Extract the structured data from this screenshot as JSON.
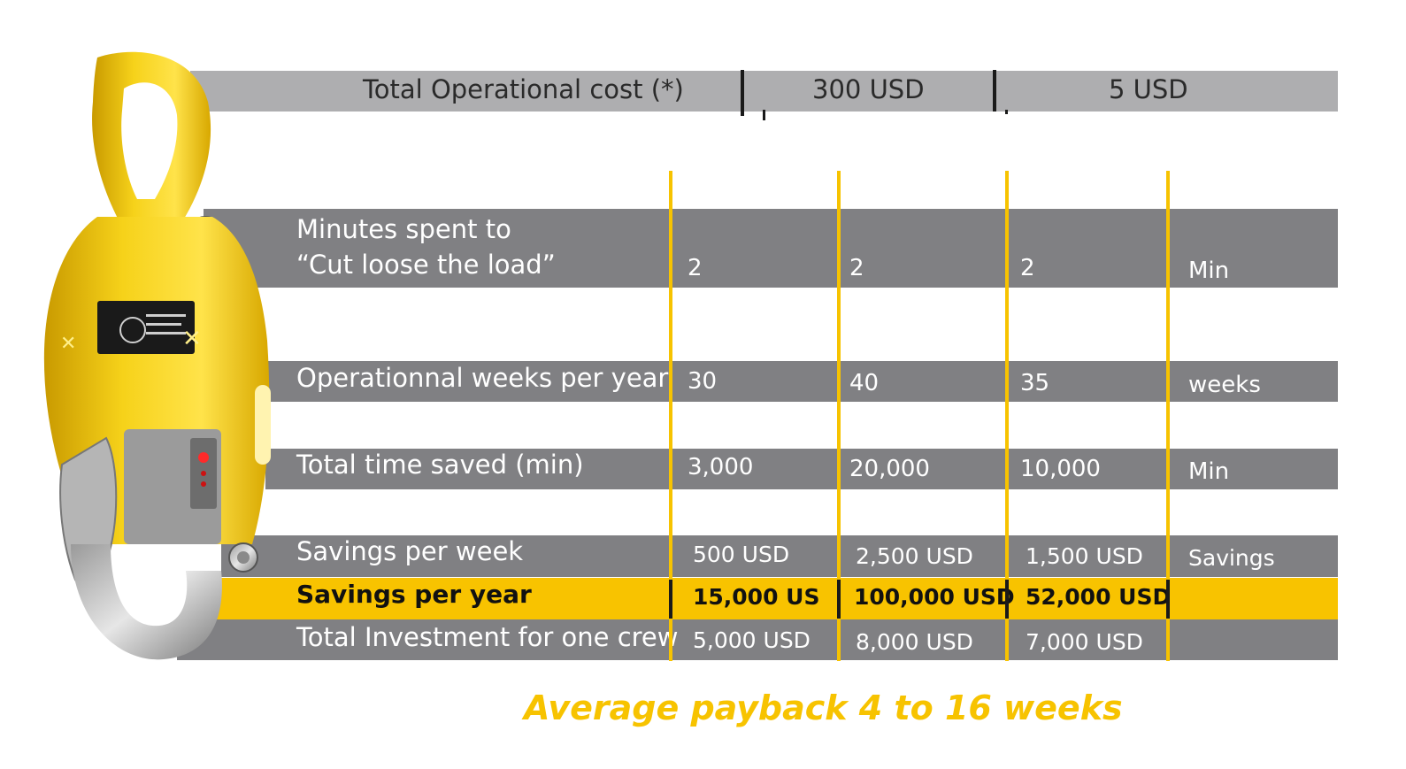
{
  "header": {
    "label": "Total Operational cost (*)",
    "col1": "300 USD",
    "col2": "5 USD"
  },
  "rows": {
    "minutes": {
      "label_line1": "Minutes spent to",
      "label_line2": "“Cut loose the load”",
      "v1": "2",
      "v2": "2",
      "v3": "2",
      "unit": "Min"
    },
    "weeks": {
      "label": "Operationnal weeks per year",
      "v1": "30",
      "v2": "40",
      "v3": "35",
      "unit": "weeks"
    },
    "time_saved": {
      "label": "Total time saved (min)",
      "v1": "3,000",
      "v2": "20,000",
      "v3": "10,000",
      "unit": "Min"
    },
    "savings_week": {
      "label": "Savings per week",
      "v1": "500 USD",
      "v2": "2,500 USD",
      "v3": "1,500 USD",
      "unit": "Savings"
    },
    "savings_year": {
      "label": "Savings per year",
      "v1": "15,000 US",
      "v2": "100,000 USD",
      "v3": "52,000 USD"
    },
    "investment": {
      "label": "Total Investment for one crew",
      "v1": "5,000 USD",
      "v2": "8,000 USD",
      "v3": "7,000 USD"
    }
  },
  "footer": {
    "payback": "Average payback 4 to 16 weeks"
  },
  "colors": {
    "accent_yellow": "#f8c300",
    "bar_light_gray": "#aeaeb0",
    "bar_dark_gray": "#808083"
  },
  "hook": {
    "icon": "lifting-hook-illustration"
  }
}
